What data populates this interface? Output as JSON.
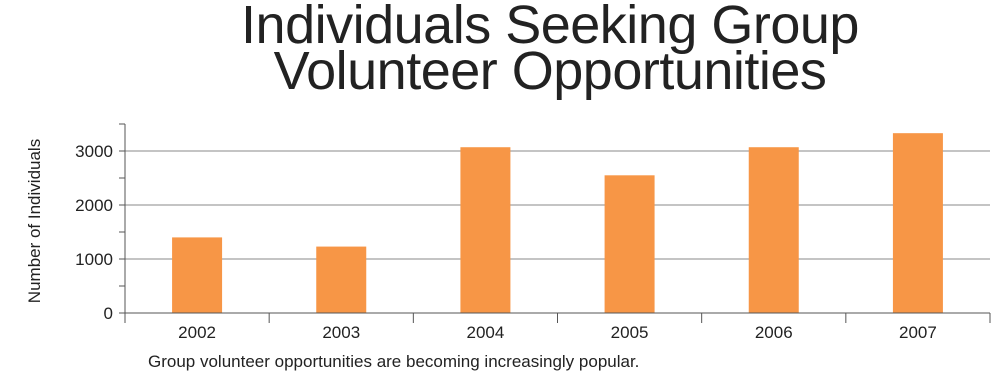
{
  "chart_data": {
    "type": "bar",
    "title_lines": [
      "Individuals Seeking Group",
      "Volunteer Opportunities"
    ],
    "ylabel": "Number of Individuals",
    "xlabel": "",
    "categories": [
      "2002",
      "2003",
      "2004",
      "2005",
      "2006",
      "2007"
    ],
    "values": [
      1400,
      1230,
      3070,
      2550,
      3070,
      3330
    ],
    "ylim": [
      0,
      3500
    ],
    "yticks": [
      0,
      1000,
      2000,
      3000
    ],
    "grid": true,
    "bar_color": "#f79646",
    "grid_color": "#888888",
    "caption": "Group volunteer opportunities are becoming increasingly popular."
  }
}
